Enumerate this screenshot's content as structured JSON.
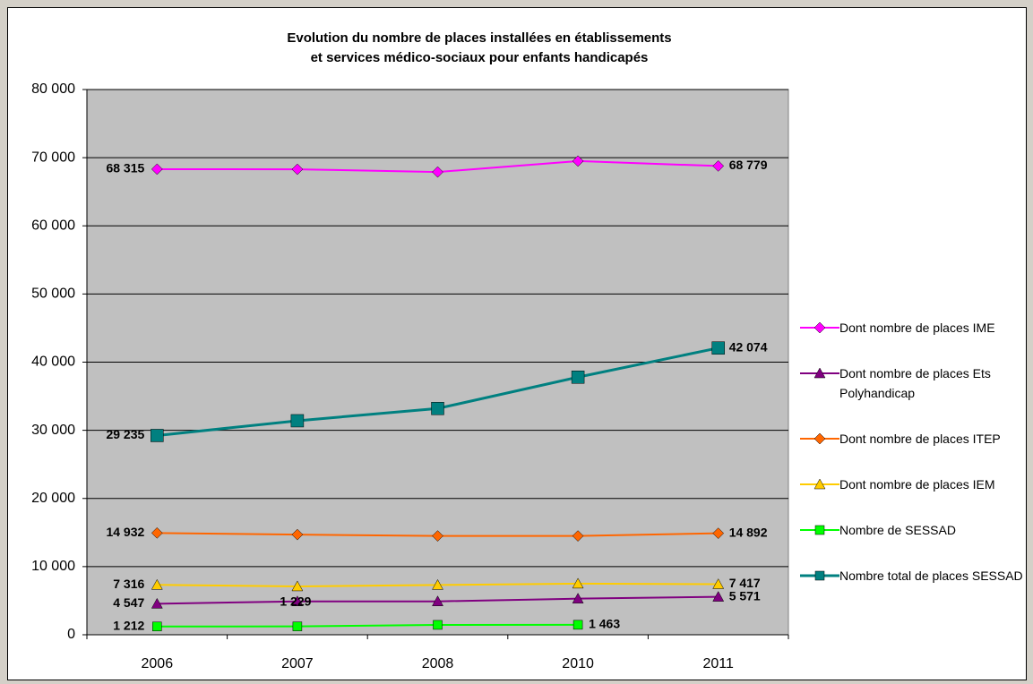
{
  "chart_data": {
    "type": "line",
    "title": [
      "Evolution du nombre de places installées en établissements",
      "et services médico-sociaux pour enfants handicapés"
    ],
    "categories": [
      "2006",
      "2007",
      "2008",
      "2010",
      "2011"
    ],
    "ylim": [
      0,
      80000
    ],
    "yticks": [
      {
        "value": 0,
        "label": "0"
      },
      {
        "value": 10000,
        "label": "10 000"
      },
      {
        "value": 20000,
        "label": "20 000"
      },
      {
        "value": 30000,
        "label": "30 000"
      },
      {
        "value": 40000,
        "label": "40 000"
      },
      {
        "value": 50000,
        "label": "50 000"
      },
      {
        "value": 60000,
        "label": "60 000"
      },
      {
        "value": 70000,
        "label": "70 000"
      },
      {
        "value": 80000,
        "label": "80 000"
      }
    ],
    "grid": true,
    "legend": "right",
    "series": [
      {
        "name": "Dont nombre de places IME",
        "color": "#ff00ff",
        "marker": "diamond",
        "values": [
          68315,
          68300,
          67900,
          69500,
          68779
        ],
        "value_labels": [
          "68 315",
          null,
          null,
          null,
          "68 779"
        ]
      },
      {
        "name": "Dont nombre de places Ets Polyhandicap",
        "color": "#800080",
        "marker": "triangle",
        "values": [
          4547,
          4900,
          4900,
          5300,
          5571
        ],
        "value_labels": [
          "4 547",
          null,
          null,
          null,
          "5 571"
        ]
      },
      {
        "name": "Dont nombre de places ITEP",
        "color": "#ff6600",
        "marker": "diamond",
        "values": [
          14932,
          14700,
          14500,
          14500,
          14892
        ],
        "value_labels": [
          "14 932",
          null,
          null,
          null,
          "14 892"
        ]
      },
      {
        "name": "Dont nombre de places IEM",
        "color": "#ffcc00",
        "marker": "triangle",
        "values": [
          7316,
          7100,
          7300,
          7500,
          7417
        ],
        "value_labels": [
          "7 316",
          null,
          null,
          null,
          "7 417"
        ]
      },
      {
        "name": "Nombre de SESSAD",
        "color": "#00ff00",
        "marker": "square",
        "values": [
          1212,
          1229,
          1450,
          1463,
          null
        ],
        "value_labels": [
          "1 212",
          "1 229",
          null,
          "1 463",
          null
        ]
      },
      {
        "name": "Nombre total de places SESSAD",
        "color": "#008080",
        "marker": "bigsquare",
        "values": [
          29235,
          31400,
          33200,
          37800,
          42074
        ],
        "value_labels": [
          "29 235",
          null,
          null,
          null,
          "42 074"
        ]
      }
    ]
  }
}
